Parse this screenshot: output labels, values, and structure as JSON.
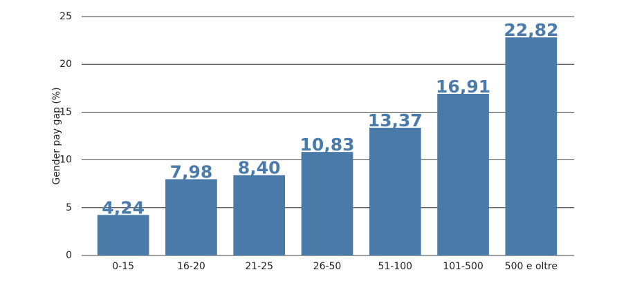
{
  "chart_data": {
    "type": "bar",
    "y_label": "Gender pay gap (%)",
    "categories": [
      "0-15",
      "16-20",
      "21-25",
      "26-50",
      "51-100",
      "101-500",
      "500 e oltre"
    ],
    "values": [
      4.24,
      7.98,
      8.4,
      10.83,
      13.37,
      16.91,
      22.82
    ],
    "value_labels": [
      "4,24",
      "7,98",
      "8,40",
      "10,83",
      "13,37",
      "16,91",
      "22,82"
    ],
    "color": "#4a7aa8",
    "ylim": [
      0,
      25
    ],
    "yticks": [
      0,
      5,
      10,
      15,
      20,
      25
    ],
    "grid": true
  }
}
